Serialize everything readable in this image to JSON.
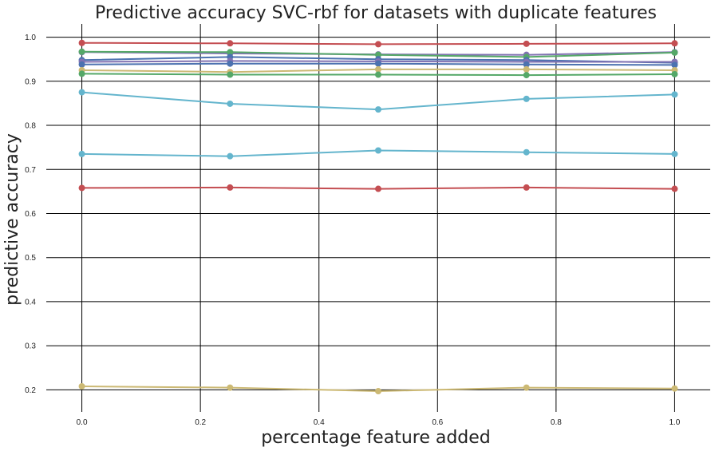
{
  "chart_data": {
    "type": "line",
    "title": "Predictive accuracy SVC-rbf for datasets with duplicate features",
    "xlabel": "percentage feature added",
    "ylabel": "predictive accuracy",
    "x": [
      0.0,
      0.25,
      0.5,
      0.75,
      1.0
    ],
    "xlim": [
      -0.06,
      1.06
    ],
    "ylim": [
      0.15,
      1.03
    ],
    "xticks": [
      "0.0",
      "0.2",
      "0.4",
      "0.6",
      "0.8",
      "1.0"
    ],
    "xtick_values": [
      0.0,
      0.2,
      0.4,
      0.6,
      0.8,
      1.0
    ],
    "yticks": [
      "0.2",
      "0.3",
      "0.4",
      "0.5",
      "0.6",
      "0.7",
      "0.8",
      "0.9",
      "1.0"
    ],
    "ytick_values": [
      0.2,
      0.3,
      0.4,
      0.5,
      0.6,
      0.7,
      0.8,
      0.9,
      1.0
    ],
    "grid": true,
    "legend": "none",
    "series": [
      {
        "color": "#c44e52",
        "values": [
          0.987,
          0.986,
          0.984,
          0.985,
          0.986
        ]
      },
      {
        "color": "#8172b2",
        "values": [
          0.966,
          0.963,
          0.961,
          0.96,
          0.966
        ]
      },
      {
        "color": "#55a868",
        "values": [
          0.967,
          0.966,
          0.96,
          0.955,
          0.965
        ]
      },
      {
        "color": "#4c72b0",
        "values": [
          0.948,
          0.955,
          0.95,
          0.948,
          0.942
        ]
      },
      {
        "color": "#8172b2",
        "values": [
          0.944,
          0.946,
          0.945,
          0.944,
          0.944
        ]
      },
      {
        "color": "#4c72b0",
        "values": [
          0.938,
          0.94,
          0.94,
          0.938,
          0.937
        ]
      },
      {
        "color": "#ccb974",
        "values": [
          0.925,
          0.921,
          0.927,
          0.927,
          0.925
        ]
      },
      {
        "color": "#55a868",
        "values": [
          0.917,
          0.915,
          0.915,
          0.914,
          0.916
        ]
      },
      {
        "color": "#64b5cd",
        "values": [
          0.875,
          0.849,
          0.836,
          0.86,
          0.87
        ]
      },
      {
        "color": "#64b5cd",
        "values": [
          0.735,
          0.73,
          0.743,
          0.739,
          0.735
        ]
      },
      {
        "color": "#c44e52",
        "values": [
          0.658,
          0.659,
          0.656,
          0.659,
          0.656
        ]
      },
      {
        "color": "#ccb974",
        "values": [
          0.208,
          0.205,
          0.197,
          0.205,
          0.203
        ]
      }
    ]
  }
}
